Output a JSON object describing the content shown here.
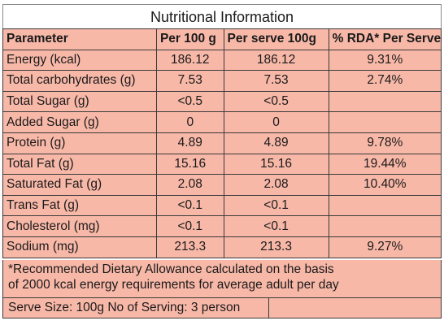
{
  "title": "Nutritional Information",
  "columns": [
    "Parameter",
    "Per 100 g",
    "Per serve 100g",
    "% RDA* Per Serve"
  ],
  "rows": [
    {
      "parameter": "Energy (kcal)",
      "per100": "186.12",
      "perServe": "186.12",
      "rda": "9.31%"
    },
    {
      "parameter": "Total carbohydrates (g)",
      "per100": "7.53",
      "perServe": "7.53",
      "rda": "2.74%"
    },
    {
      "parameter": "Total Sugar (g)",
      "per100": "<0.5",
      "perServe": "<0.5",
      "rda": ""
    },
    {
      "parameter": "Added Sugar (g)",
      "per100": "0",
      "perServe": "0",
      "rda": ""
    },
    {
      "parameter": "Protein (g)",
      "per100": "4.89",
      "perServe": "4.89",
      "rda": "9.78%"
    },
    {
      "parameter": "Total Fat (g)",
      "per100": "15.16",
      "perServe": "15.16",
      "rda": "19.44%"
    },
    {
      "parameter": "Saturated Fat (g)",
      "per100": "2.08",
      "perServe": "2.08",
      "rda": "10.40%"
    },
    {
      "parameter": "Trans Fat (g)",
      "per100": "<0.1",
      "perServe": "<0.1",
      "rda": ""
    },
    {
      "parameter": "Cholesterol  (mg)",
      "per100": "<0.1",
      "perServe": "<0.1",
      "rda": ""
    },
    {
      "parameter": "Sodium  (mg)",
      "per100": "213.3",
      "perServe": "213.3",
      "rda": "9.27%"
    }
  ],
  "footnote": {
    "line1": "*Recommended Dietary Allowance calculated on the basis",
    "line2": "of 2000 kcal energy requirements for average  adult per day"
  },
  "serve_info": "Serve Size: 100g No of Serving: 3 person",
  "colors": {
    "cell_background": "#f8b8a8",
    "border": "#3a3a3a",
    "title_background": "#ffffff"
  }
}
